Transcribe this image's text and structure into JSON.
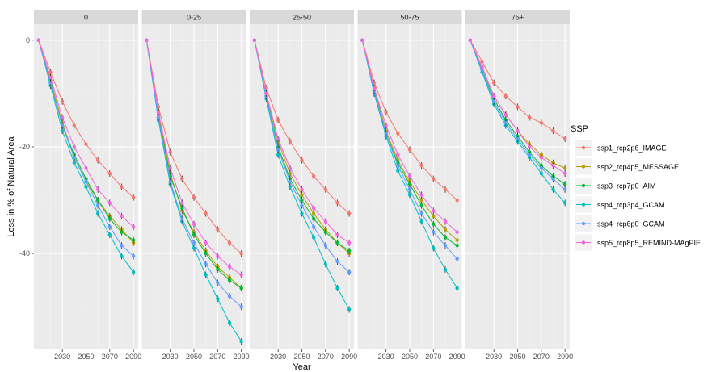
{
  "chart_data": {
    "type": "line",
    "facet_var": "",
    "facets": [
      "0",
      "0-25",
      "25-50",
      "50-75",
      "75+"
    ],
    "x": [
      2010,
      2020,
      2030,
      2040,
      2050,
      2060,
      2070,
      2080,
      2090
    ],
    "xticks": [
      "2030",
      "2050",
      "2070",
      "2090"
    ],
    "yticks": [
      "0",
      "-20",
      "-40"
    ],
    "ytick_values": [
      0,
      -20,
      -40
    ],
    "ylim": [
      -58,
      3
    ],
    "xlim": [
      2006,
      2094
    ],
    "xlabel": "Year",
    "ylabel": "Loss in % of Natural Area",
    "legend_title": "SSP",
    "legend_position": "right",
    "grid": true,
    "series": [
      {
        "name": "ssp1_rcp2p6_IMAGE",
        "color": "#F8766D",
        "values": [
          [
            0,
            -6,
            -11.5,
            -16,
            -19.5,
            -22.5,
            -25,
            -27.5,
            -29.5
          ],
          [
            0,
            -12.5,
            -21,
            -26,
            -29.5,
            -32.5,
            -35.5,
            -38,
            -40
          ],
          [
            0,
            -9,
            -15,
            -19,
            -22.5,
            -25.5,
            -28,
            -30.5,
            -32.5
          ],
          [
            0,
            -8,
            -13.5,
            -17.5,
            -20.5,
            -23.5,
            -26,
            -28,
            -30
          ],
          [
            0,
            -4,
            -8,
            -10.5,
            -12.5,
            -14.5,
            -15.5,
            -17,
            -18.5
          ]
        ]
      },
      {
        "name": "ssp2_rcp4p5_MESSAGE",
        "color": "#B79F00",
        "values": [
          [
            0,
            -7.5,
            -15.5,
            -22,
            -26.5,
            -30,
            -33,
            -35.5,
            -38
          ],
          [
            0,
            -14,
            -25,
            -32,
            -36,
            -39.5,
            -42.5,
            -44.5,
            -46.5
          ],
          [
            0,
            -10,
            -19,
            -25,
            -29,
            -32.5,
            -35.5,
            -38,
            -40
          ],
          [
            0,
            -9,
            -17,
            -22.5,
            -26.5,
            -30,
            -33,
            -35.5,
            -37.5
          ],
          [
            0,
            -5,
            -10.5,
            -14,
            -17,
            -19.5,
            -21.5,
            -23,
            -24
          ]
        ]
      },
      {
        "name": "ssp3_rcp7p0_AIM",
        "color": "#00BA38",
        "values": [
          [
            0,
            -8,
            -16,
            -21.5,
            -26,
            -30,
            -33.5,
            -36,
            -37.5
          ],
          [
            0,
            -14.5,
            -25.5,
            -31.5,
            -36.5,
            -40,
            -43,
            -45,
            -46.5
          ],
          [
            0,
            -10.5,
            -20,
            -26,
            -30,
            -33.5,
            -36,
            -38,
            -39.5
          ],
          [
            0,
            -9.5,
            -17.5,
            -23,
            -27,
            -31,
            -34.5,
            -37,
            -38.5
          ],
          [
            0,
            -5.5,
            -11,
            -15,
            -18,
            -21,
            -23.5,
            -25.5,
            -27
          ]
        ]
      },
      {
        "name": "ssp4_rcp3p4_GCAM",
        "color": "#00BFC4",
        "values": [
          [
            0,
            -8.5,
            -17,
            -23,
            -27.5,
            -32.5,
            -36.5,
            -40.5,
            -43.5
          ],
          [
            0,
            -15,
            -27,
            -34,
            -39,
            -44,
            -48.5,
            -53,
            -56.5
          ],
          [
            0,
            -11,
            -21.5,
            -27.5,
            -32.5,
            -37,
            -42,
            -46.5,
            -50.5
          ],
          [
            0,
            -10,
            -18,
            -24.5,
            -29,
            -34,
            -39,
            -43,
            -46.5
          ],
          [
            0,
            -6,
            -12,
            -16,
            -19,
            -22,
            -25,
            -28,
            -30.5
          ]
        ]
      },
      {
        "name": "ssp4_rcp6p0_GCAM",
        "color": "#619CFF",
        "values": [
          [
            0,
            -8,
            -16,
            -22,
            -26.5,
            -31,
            -35,
            -38.5,
            -40.5
          ],
          [
            0,
            -14.5,
            -26.5,
            -33.5,
            -38,
            -42,
            -45.5,
            -48,
            -50
          ],
          [
            0,
            -10.5,
            -20.5,
            -26.5,
            -31,
            -35,
            -38.5,
            -41.5,
            -43.5
          ],
          [
            0,
            -9.5,
            -17.5,
            -23.5,
            -28,
            -32.5,
            -36,
            -38.5,
            -41
          ],
          [
            0,
            -5.5,
            -11.5,
            -15.5,
            -18.5,
            -21.5,
            -24,
            -26,
            -28
          ]
        ]
      },
      {
        "name": "ssp5_rcp8p5_REMIND-MAgPIE",
        "color": "#F564E3",
        "values": [
          [
            0,
            -7,
            -14.5,
            -20,
            -24,
            -28,
            -30.5,
            -33,
            -35
          ],
          [
            0,
            -13.5,
            -24,
            -30.5,
            -34.5,
            -38,
            -40.5,
            -42.5,
            -44
          ],
          [
            0,
            -10,
            -18.5,
            -24,
            -28,
            -31.5,
            -34,
            -36.5,
            -38
          ],
          [
            0,
            -9,
            -16,
            -21.5,
            -25.5,
            -29,
            -32,
            -34,
            -36
          ],
          [
            0,
            -5,
            -10.5,
            -14,
            -17,
            -20,
            -22,
            -23.5,
            -25
          ]
        ]
      }
    ]
  }
}
